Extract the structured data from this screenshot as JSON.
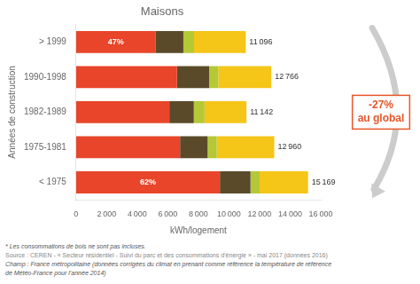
{
  "chart_data": {
    "type": "bar",
    "orientation": "horizontal",
    "stacked": true,
    "title": "Maisons",
    "xlabel": "kWh/logement",
    "ylabel": "Années de construction",
    "categories": [
      "> 1999",
      "1990-1998",
      "1982-1989",
      "1975-1981",
      "< 1975"
    ],
    "series": [
      {
        "color": "#e8452a",
        "values": [
          5216,
          6600,
          6100,
          6800,
          9405
        ]
      },
      {
        "color": "#5a4a2a",
        "values": [
          1800,
          2100,
          1600,
          1800,
          2000
        ]
      },
      {
        "color": "#b5c835",
        "values": [
          700,
          600,
          700,
          600,
          600
        ]
      },
      {
        "color": "#f5c518",
        "values": [
          3380,
          3466,
          2742,
          3760,
          3164
        ]
      }
    ],
    "totals": {
      "values": [
        11096,
        12766,
        11142,
        12960,
        15169
      ],
      "value_labels": [
        "11 096",
        "12 766",
        "11 142",
        "12 960",
        "15 169"
      ]
    },
    "percent_labels": [
      {
        "category": "> 1999",
        "label": "47%"
      },
      {
        "category": "< 1975",
        "label": "62%"
      }
    ],
    "xlim": [
      0,
      16000
    ],
    "xticks": [
      0,
      {
        "value": 2000,
        "label": "2 000"
      },
      {
        "value": 4000,
        "label": "4 000"
      },
      {
        "value": 6000,
        "label": "6 000"
      },
      {
        "value": 8000,
        "label": "8 000"
      },
      {
        "value": 10000,
        "label": "10 000"
      },
      {
        "value": 12000,
        "label": "12 000"
      },
      {
        "value": 14000,
        "label": "14 000"
      },
      {
        "value": 16000,
        "label": "16 000"
      }
    ],
    "grid": false,
    "annotation": {
      "text": "-27%\nau global",
      "color": "#e8572a"
    },
    "footnotes": [
      "* Les consommations de bois ne sont pas incluses.",
      "Source : CEREN - « Secteur résidentiel - Suivi du parc et des consommations d’énergie » - mai 2017 (données 2016)",
      "Champ : France métropolitaine (données corrigées du climat en prenant comme référence la température de référence",
      "de Météo-France pour l’année 2014)"
    ]
  }
}
